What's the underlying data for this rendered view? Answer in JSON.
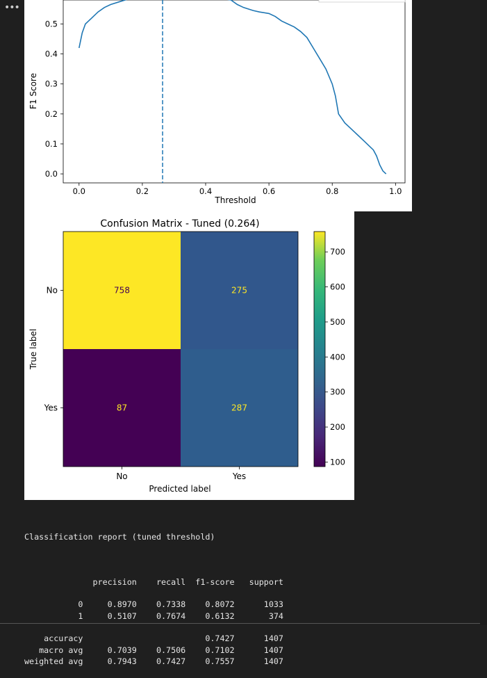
{
  "cell_menu_icon": "ellipsis-icon",
  "f1_chart": {
    "type": "line",
    "ylabel": "F1 Score",
    "xlabel": "Threshold",
    "y_ticks": [
      "0.0",
      "0.1",
      "0.2",
      "0.3",
      "0.4",
      "0.5"
    ],
    "x_ticks": [
      "0.0",
      "0.2",
      "0.4",
      "0.6",
      "0.8",
      "1.0"
    ],
    "line_color": "#1f77b4",
    "best_threshold": 0.264,
    "chart_data": {
      "type": "line",
      "xlabel": "Threshold",
      "ylabel": "F1 Score",
      "xlim": [
        -0.05,
        1.03
      ],
      "ylim": [
        -0.03,
        0.58
      ],
      "x": [
        0.0,
        0.01,
        0.02,
        0.04,
        0.06,
        0.08,
        0.1,
        0.13,
        0.16,
        0.2,
        0.25,
        0.3,
        0.35,
        0.4,
        0.45,
        0.48,
        0.5,
        0.52,
        0.55,
        0.57,
        0.6,
        0.62,
        0.64,
        0.66,
        0.68,
        0.7,
        0.72,
        0.74,
        0.76,
        0.78,
        0.8,
        0.81,
        0.82,
        0.84,
        0.86,
        0.88,
        0.9,
        0.92,
        0.93,
        0.94,
        0.95,
        0.96,
        0.97
      ],
      "y": [
        0.42,
        0.47,
        0.5,
        0.52,
        0.54,
        0.555,
        0.565,
        0.575,
        0.585,
        0.595,
        0.6,
        0.6,
        0.6,
        0.6,
        0.595,
        0.58,
        0.565,
        0.555,
        0.545,
        0.54,
        0.535,
        0.525,
        0.51,
        0.5,
        0.49,
        0.475,
        0.455,
        0.42,
        0.385,
        0.35,
        0.3,
        0.26,
        0.2,
        0.17,
        0.15,
        0.13,
        0.11,
        0.09,
        0.08,
        0.06,
        0.03,
        0.01,
        0.0
      ]
    }
  },
  "cm_chart": {
    "title": "Confusion Matrix - Tuned (0.264)",
    "xlabel": "Predicted label",
    "ylabel": "True label",
    "row_labels": [
      "No",
      "Yes"
    ],
    "col_labels": [
      "No",
      "Yes"
    ],
    "colorbar_ticks": [
      "100",
      "200",
      "300",
      "400",
      "500",
      "600",
      "700"
    ],
    "chart_data": {
      "type": "heatmap",
      "title": "Confusion Matrix - Tuned (0.264)",
      "xlabel": "Predicted label",
      "ylabel": "True label",
      "rows": [
        "No",
        "Yes"
      ],
      "columns": [
        "No",
        "Yes"
      ],
      "values": [
        [
          758,
          275
        ],
        [
          87,
          287
        ]
      ],
      "colorbar_range": [
        87,
        758
      ],
      "colormap": "viridis",
      "cell_colors": [
        [
          "#fde725",
          "#31578c"
        ],
        [
          "#440154",
          "#2f5d8d"
        ]
      ],
      "text_colors": [
        [
          "#440154",
          "#fde725"
        ],
        [
          "#fde725",
          "#fde725"
        ]
      ]
    }
  },
  "report": {
    "title": "Classification report (tuned threshold)",
    "header": [
      "precision",
      "recall",
      "f1-score",
      "support"
    ],
    "rows": [
      {
        "label": "0",
        "precision": "0.8970",
        "recall": "0.7338",
        "f1": "0.8072",
        "support": "1033"
      },
      {
        "label": "1",
        "precision": "0.5107",
        "recall": "0.7674",
        "f1": "0.6132",
        "support": "374"
      }
    ],
    "accuracy": {
      "label": "accuracy",
      "f1": "0.7427",
      "support": "1407"
    },
    "averages": [
      {
        "label": "macro avg",
        "precision": "0.7039",
        "recall": "0.7506",
        "f1": "0.7102",
        "support": "1407"
      },
      {
        "label": "weighted avg",
        "precision": "0.7943",
        "recall": "0.7427",
        "f1": "0.7557",
        "support": "1407"
      }
    ]
  }
}
